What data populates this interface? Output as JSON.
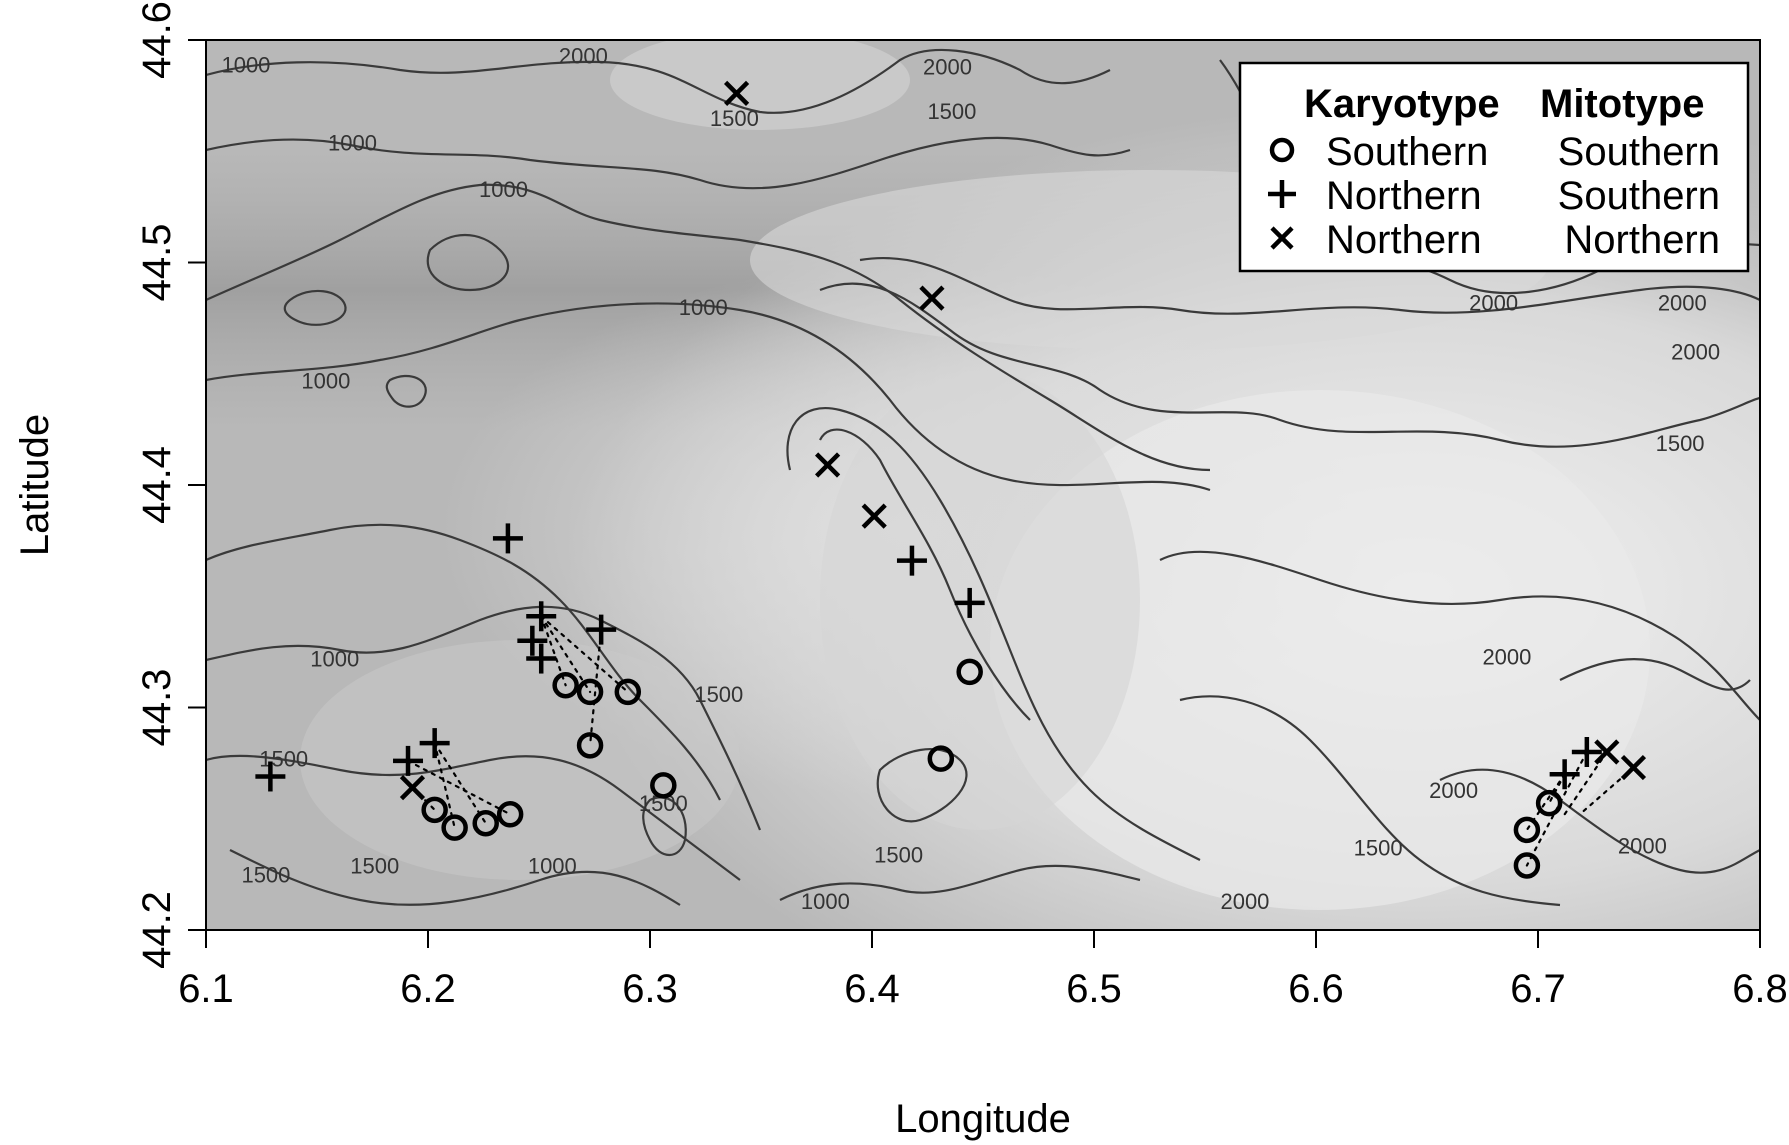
{
  "chart_data": {
    "type": "scatter",
    "xlabel": "Longitude",
    "ylabel": "Latitude",
    "xlim": [
      6.1,
      6.8
    ],
    "ylim": [
      44.2,
      44.6
    ],
    "x_ticks": [
      "6.1",
      "6.2",
      "6.3",
      "6.4",
      "6.5",
      "6.6",
      "6.7",
      "6.8"
    ],
    "y_ticks": [
      "44.2",
      "44.3",
      "44.4",
      "44.5",
      "44.6"
    ],
    "background": "elevation relief map with contour lines",
    "contour_levels": [
      "1000",
      "1500",
      "2000"
    ],
    "contour_labels": [
      {
        "text": "1000",
        "x": 6.118,
        "y": 44.588
      },
      {
        "text": "2000",
        "x": 6.27,
        "y": 44.592
      },
      {
        "text": "2000",
        "x": 6.434,
        "y": 44.587
      },
      {
        "text": "1500",
        "x": 6.338,
        "y": 44.564
      },
      {
        "text": "1500",
        "x": 6.436,
        "y": 44.567
      },
      {
        "text": "1000",
        "x": 6.166,
        "y": 44.553
      },
      {
        "text": "1000",
        "x": 6.234,
        "y": 44.532
      },
      {
        "text": "1000",
        "x": 6.324,
        "y": 44.479
      },
      {
        "text": "2000",
        "x": 6.68,
        "y": 44.481
      },
      {
        "text": "2000",
        "x": 6.765,
        "y": 44.481
      },
      {
        "text": "2000",
        "x": 6.771,
        "y": 44.459
      },
      {
        "text": "1500",
        "x": 6.764,
        "y": 44.418
      },
      {
        "text": "1000",
        "x": 6.154,
        "y": 44.446
      },
      {
        "text": "2000",
        "x": 6.686,
        "y": 44.322
      },
      {
        "text": "1000",
        "x": 6.158,
        "y": 44.321
      },
      {
        "text": "1500",
        "x": 6.135,
        "y": 44.276
      },
      {
        "text": "1500",
        "x": 6.331,
        "y": 44.305
      },
      {
        "text": "1500",
        "x": 6.306,
        "y": 44.256
      },
      {
        "text": "1500",
        "x": 6.412,
        "y": 44.233
      },
      {
        "text": "1500",
        "x": 6.127,
        "y": 44.224
      },
      {
        "text": "1500",
        "x": 6.176,
        "y": 44.228
      },
      {
        "text": "1000",
        "x": 6.256,
        "y": 44.228
      },
      {
        "text": "1000",
        "x": 6.379,
        "y": 44.212
      },
      {
        "text": "2000",
        "x": 6.662,
        "y": 44.262
      },
      {
        "text": "1500",
        "x": 6.628,
        "y": 44.236
      },
      {
        "text": "2000",
        "x": 6.568,
        "y": 44.212
      },
      {
        "text": "2000",
        "x": 6.747,
        "y": 44.237
      }
    ],
    "legend": {
      "position": "top-right",
      "headers": [
        "Karyotype",
        "Mitotype"
      ],
      "entries": [
        {
          "symbol": "circle",
          "karyotype": "Southern",
          "mitotype": "Southern"
        },
        {
          "symbol": "plus",
          "karyotype": "Northern",
          "mitotype": "Southern"
        },
        {
          "symbol": "cross",
          "karyotype": "Northern",
          "mitotype": "Northern"
        }
      ]
    },
    "series": [
      {
        "symbol": "circle",
        "points": [
          [
            6.203,
            44.254
          ],
          [
            6.212,
            44.246
          ],
          [
            6.226,
            44.248
          ],
          [
            6.237,
            44.252
          ],
          [
            6.262,
            44.31
          ],
          [
            6.273,
            44.307
          ],
          [
            6.29,
            44.307
          ],
          [
            6.273,
            44.283
          ],
          [
            6.306,
            44.265
          ],
          [
            6.444,
            44.316
          ],
          [
            6.431,
            44.277
          ],
          [
            6.695,
            44.245
          ],
          [
            6.705,
            44.257
          ],
          [
            6.695,
            44.229
          ]
        ]
      },
      {
        "symbol": "plus",
        "points": [
          [
            6.129,
            44.269
          ],
          [
            6.191,
            44.276
          ],
          [
            6.203,
            44.284
          ],
          [
            6.236,
            44.376
          ],
          [
            6.247,
            44.33
          ],
          [
            6.251,
            44.341
          ],
          [
            6.251,
            44.322
          ],
          [
            6.278,
            44.335
          ],
          [
            6.418,
            44.366
          ],
          [
            6.444,
            44.347
          ],
          [
            6.712,
            44.27
          ],
          [
            6.722,
            44.28
          ]
        ]
      },
      {
        "symbol": "cross",
        "points": [
          [
            6.339,
            44.576
          ],
          [
            6.427,
            44.484
          ],
          [
            6.38,
            44.409
          ],
          [
            6.401,
            44.386
          ],
          [
            6.193,
            44.264
          ],
          [
            6.731,
            44.28
          ],
          [
            6.743,
            44.273
          ]
        ]
      }
    ],
    "links": [
      [
        [
          6.193,
          44.264
        ],
        [
          6.203,
          44.254
        ]
      ],
      [
        [
          6.203,
          44.284
        ],
        [
          6.212,
          44.246
        ]
      ],
      [
        [
          6.203,
          44.284
        ],
        [
          6.226,
          44.248
        ]
      ],
      [
        [
          6.191,
          44.276
        ],
        [
          6.237,
          44.252
        ]
      ],
      [
        [
          6.251,
          44.341
        ],
        [
          6.262,
          44.31
        ]
      ],
      [
        [
          6.251,
          44.341
        ],
        [
          6.273,
          44.307
        ]
      ],
      [
        [
          6.251,
          44.341
        ],
        [
          6.29,
          44.307
        ]
      ],
      [
        [
          6.278,
          44.335
        ],
        [
          6.273,
          44.283
        ]
      ],
      [
        [
          6.712,
          44.27
        ],
        [
          6.695,
          44.245
        ]
      ],
      [
        [
          6.712,
          44.27
        ],
        [
          6.705,
          44.257
        ]
      ],
      [
        [
          6.722,
          44.28
        ],
        [
          6.695,
          44.229
        ]
      ],
      [
        [
          6.731,
          44.28
        ],
        [
          6.712,
          44.252
        ]
      ],
      [
        [
          6.743,
          44.273
        ],
        [
          6.72,
          44.253
        ]
      ]
    ]
  }
}
